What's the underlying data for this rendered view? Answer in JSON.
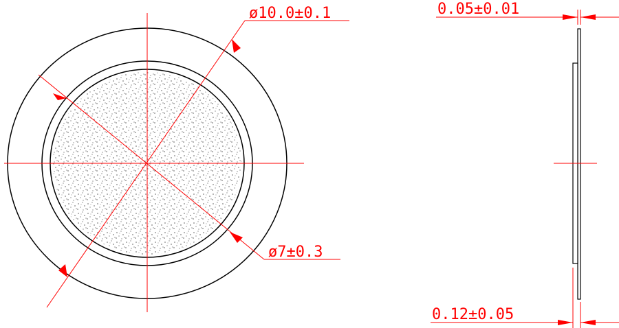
{
  "colors": {
    "outline": "#000000",
    "dimension": "#ff0000",
    "background": "#ffffff"
  },
  "front_view": {
    "outer_diameter_label": "ø10.0±0.1",
    "inner_diameter_label": "ø7±0.3"
  },
  "side_view": {
    "plate_thickness_label": "0.05±0.01",
    "total_thickness_label": "0.12±0.05"
  }
}
